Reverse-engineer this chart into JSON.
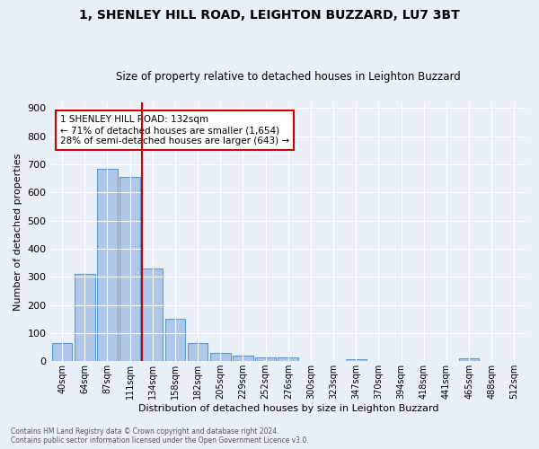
{
  "title1": "1, SHENLEY HILL ROAD, LEIGHTON BUZZARD, LU7 3BT",
  "title2": "Size of property relative to detached houses in Leighton Buzzard",
  "xlabel": "Distribution of detached houses by size in Leighton Buzzard",
  "ylabel": "Number of detached properties",
  "bar_labels": [
    "40sqm",
    "64sqm",
    "87sqm",
    "111sqm",
    "134sqm",
    "158sqm",
    "182sqm",
    "205sqm",
    "229sqm",
    "252sqm",
    "276sqm",
    "300sqm",
    "323sqm",
    "347sqm",
    "370sqm",
    "394sqm",
    "418sqm",
    "441sqm",
    "465sqm",
    "488sqm",
    "512sqm"
  ],
  "bar_values": [
    65,
    310,
    685,
    655,
    330,
    152,
    65,
    30,
    20,
    12,
    13,
    0,
    0,
    8,
    0,
    0,
    0,
    0,
    10,
    0,
    0
  ],
  "bar_color": "#aec6e8",
  "bar_edge_color": "#5b9bd5",
  "bg_color": "#eaf0f8",
  "vline_x_index": 4,
  "vline_color": "#cc0000",
  "annotation_text": "1 SHENLEY HILL ROAD: 132sqm\n← 71% of detached houses are smaller (1,654)\n28% of semi-detached houses are larger (643) →",
  "annotation_box_color": "#ffffff",
  "annotation_box_edge_color": "#cc0000",
  "footer": "Contains HM Land Registry data © Crown copyright and database right 2024.\nContains public sector information licensed under the Open Government Licence v3.0.",
  "ylim": [
    0,
    920
  ],
  "yticks": [
    0,
    100,
    200,
    300,
    400,
    500,
    600,
    700,
    800,
    900
  ]
}
